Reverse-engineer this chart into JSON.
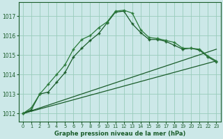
{
  "title": "Graphe pression niveau de la mer (hPa)",
  "background_color": "#cce8e8",
  "grid_color": "#99ccbb",
  "line_color_dark": "#1a5c2a",
  "line_color_med": "#2a7a3a",
  "xlim": [
    -0.5,
    23.5
  ],
  "ylim": [
    1011.6,
    1017.7
  ],
  "yticks": [
    1012,
    1013,
    1014,
    1015,
    1016,
    1017
  ],
  "xticks": [
    0,
    1,
    2,
    3,
    4,
    5,
    6,
    7,
    8,
    9,
    10,
    11,
    12,
    13,
    14,
    15,
    16,
    17,
    18,
    19,
    20,
    21,
    22,
    23
  ],
  "series_peak1": {
    "x": [
      0,
      1,
      2,
      3,
      4,
      5,
      6,
      7,
      8,
      9,
      10,
      11,
      12,
      13,
      14,
      15,
      16,
      17,
      18,
      19,
      20,
      21,
      22,
      23
    ],
    "y": [
      1012.0,
      1012.3,
      1013.0,
      1013.5,
      1014.0,
      1014.5,
      1015.3,
      1015.8,
      1016.0,
      1016.4,
      1016.7,
      1017.25,
      1017.3,
      1017.15,
      1016.3,
      1015.9,
      1015.85,
      1015.75,
      1015.65,
      1015.35,
      1015.35,
      1015.3,
      1014.95,
      1014.7
    ]
  },
  "series_peak2": {
    "x": [
      0,
      1,
      2,
      3,
      4,
      5,
      6,
      7,
      8,
      9,
      10,
      11,
      12,
      13,
      14,
      15,
      16,
      17,
      18,
      19,
      20,
      21,
      22,
      23
    ],
    "y": [
      1012.0,
      1012.2,
      1013.0,
      1013.1,
      1013.6,
      1014.1,
      1014.9,
      1015.35,
      1015.75,
      1016.1,
      1016.65,
      1017.2,
      1017.25,
      1016.6,
      1016.15,
      1015.8,
      1015.8,
      1015.7,
      1015.5,
      1015.3,
      1015.35,
      1015.25,
      1014.9,
      1014.65
    ]
  },
  "series_flat1": {
    "x": [
      0,
      23
    ],
    "y": [
      1012.0,
      1015.3
    ]
  },
  "series_flat2": {
    "x": [
      0,
      23
    ],
    "y": [
      1012.0,
      1014.7
    ]
  }
}
